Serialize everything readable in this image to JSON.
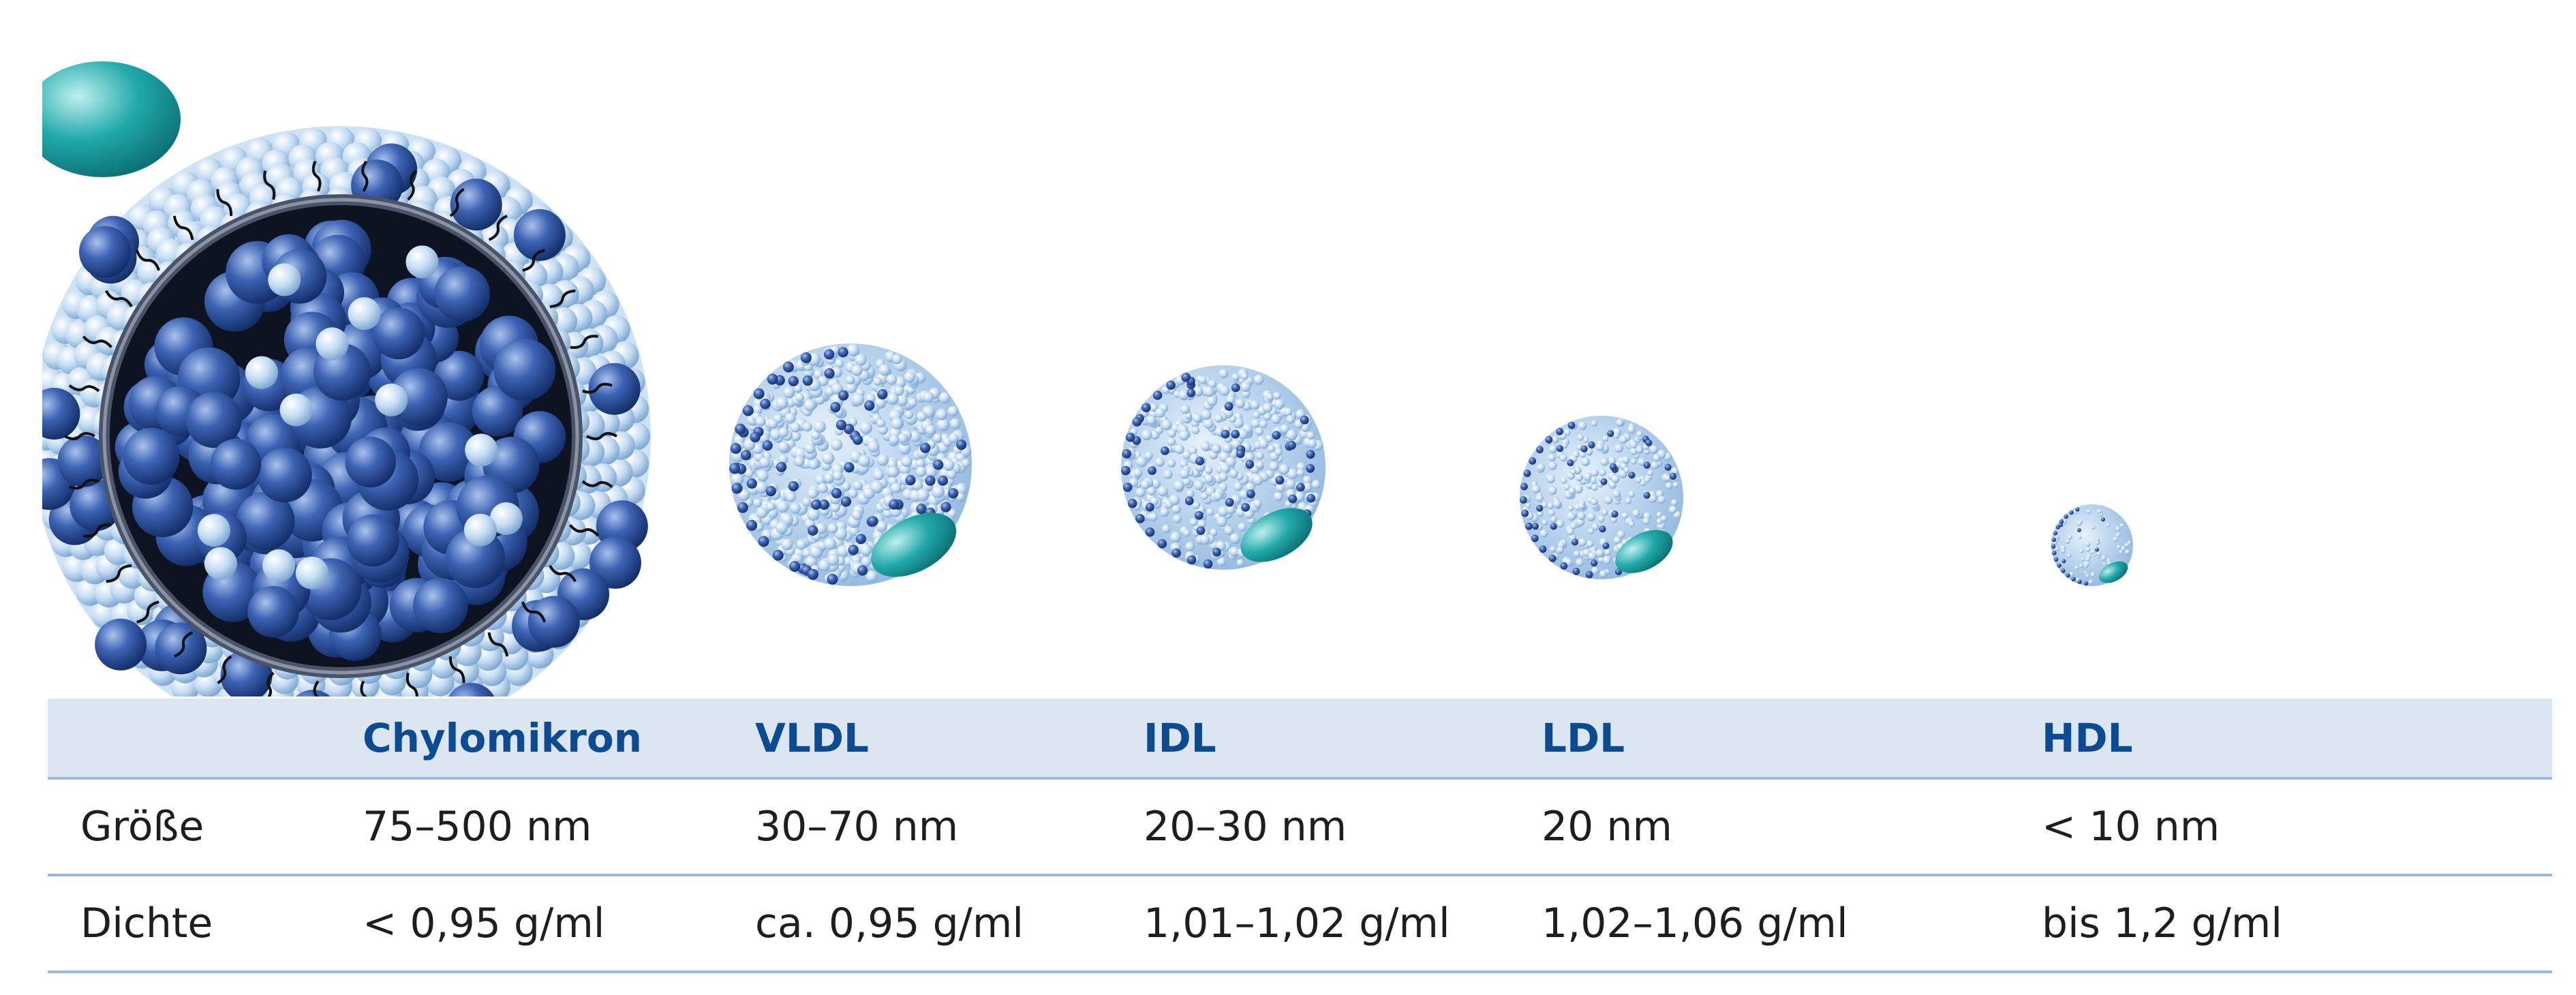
{
  "columns": [
    "",
    "Chylomikron",
    "VLDL",
    "IDL",
    "LDL",
    "HDL"
  ],
  "rows": [
    {
      "label": "Größe",
      "values": [
        "75–500 nm",
        "30–70 nm",
        "20–30 nm",
        "20 nm",
        "< 10 nm"
      ]
    },
    {
      "label": "Dichte",
      "values": [
        "< 0,95 g/ml",
        "ca. 0,95 g/ml",
        "1,01–1,02 g/ml",
        "1,02–1,06 g/ml",
        "bis 1,2 g/ml"
      ]
    }
  ],
  "colors": {
    "header_bg": "#dce6f2",
    "header_text": "#0c4a91",
    "rule": "#9cb8da",
    "lipid_core": "#2b4f9c",
    "surface_light": "#b9d6ee",
    "apoprotein": "#16979b"
  }
}
